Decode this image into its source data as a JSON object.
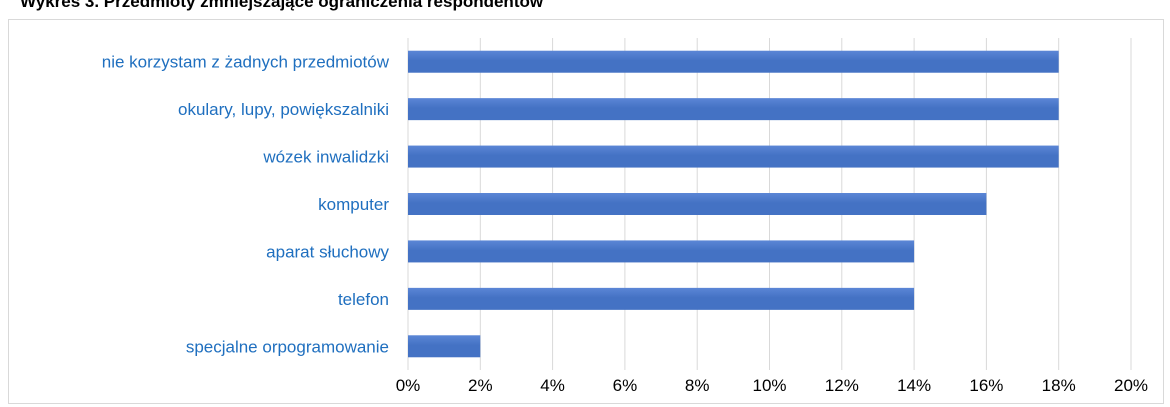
{
  "chart_data": {
    "type": "bar",
    "orientation": "horizontal",
    "title": "Wykres 3. Przedmioty zmniejszające ograniczenia respondentów",
    "categories": [
      "nie korzystam z żadnych przedmiotów",
      "okulary, lupy, powiększalniki",
      "wózek inwalidzki",
      "komputer",
      "aparat słuchowy",
      "telefon",
      "specjalne orpogramowanie"
    ],
    "values": [
      18,
      18,
      18,
      16,
      14,
      14,
      2
    ],
    "xlim": [
      0,
      20
    ],
    "x_ticks": [
      "0%",
      "2%",
      "4%",
      "6%",
      "8%",
      "10%",
      "12%",
      "14%",
      "16%",
      "18%",
      "20%"
    ],
    "grid": true,
    "colors": {
      "bar": "#4472c4",
      "bar_light": "#5b86d6",
      "category_label": "#1f6fbf",
      "tick_label": "#000000",
      "grid": "#d9d9d9"
    }
  }
}
